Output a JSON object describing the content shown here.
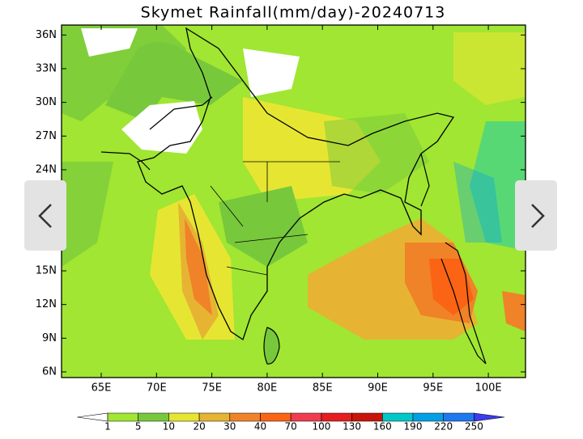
{
  "map": {
    "title": "Skymet Rainfall(mm/day)-20240713",
    "lat_ticks": [
      {
        "value": 36,
        "label": "36N"
      },
      {
        "value": 33,
        "label": "33N"
      },
      {
        "value": 30,
        "label": "30N"
      },
      {
        "value": 27,
        "label": "27N"
      },
      {
        "value": 24,
        "label": "24N"
      },
      {
        "value": 15,
        "label": "15N"
      },
      {
        "value": 12,
        "label": "12N"
      },
      {
        "value": 9,
        "label": "9N"
      },
      {
        "value": 6,
        "label": "6N"
      }
    ],
    "lon_ticks": [
      {
        "value": 65,
        "label": "65E"
      },
      {
        "value": 70,
        "label": "70E"
      },
      {
        "value": 75,
        "label": "75E"
      },
      {
        "value": 80,
        "label": "80E"
      },
      {
        "value": 85,
        "label": "85E"
      },
      {
        "value": 90,
        "label": "90E"
      },
      {
        "value": 95,
        "label": "95E"
      },
      {
        "value": 100,
        "label": "100E"
      }
    ],
    "colorbar": {
      "levels": [
        1,
        5,
        10,
        20,
        30,
        40,
        70,
        100,
        130,
        160,
        190,
        220,
        250
      ],
      "colors": [
        "#ffffff",
        "#a0e632",
        "#78c83c",
        "#e6e632",
        "#e6b432",
        "#f08228",
        "#fa6414",
        "#f03c50",
        "#e61e1e",
        "#c8140a",
        "#00c8c8",
        "#00a0e6",
        "#1e78f0",
        "#3c3cf0"
      ]
    }
  }
}
